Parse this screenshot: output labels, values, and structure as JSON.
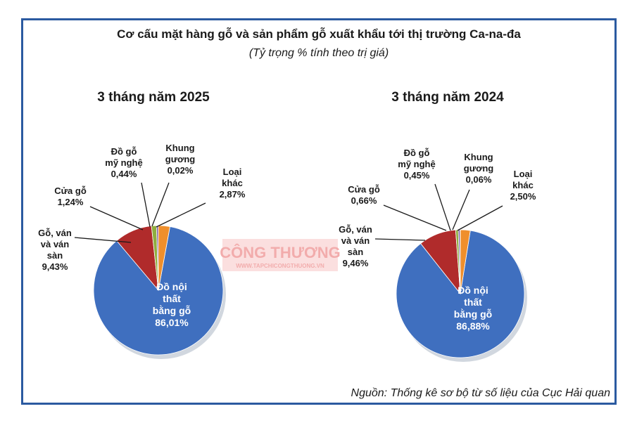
{
  "header": {
    "title": "Cơ cấu mặt hàng gỗ và sản phẩm gỗ xuất khẩu tới thị trường Ca-na-đa",
    "subtitle": "(Tỷ trọng % tính theo trị giá)"
  },
  "source": "Nguồn: Thống kê sơ bộ từ số liệu của Cục Hải quan",
  "watermark": {
    "main": "CÔNG THƯƠNG",
    "sub": "WWW.TAPCHICONGTHUONG.VN"
  },
  "colors": {
    "frame": "#2b5aa0",
    "do_noi_that": "#3f6fbf",
    "go_van": "#b02b2b",
    "cua_go": "#8fae3e",
    "do_go_my_nghe": "#7c5aa0",
    "khung_guong": "#3fa6c4",
    "loai_khac": "#ef8f2c"
  },
  "chart_data": [
    {
      "type": "pie",
      "title": "3 tháng năm 2025",
      "slices": [
        {
          "key": "do_noi_that",
          "label_lines": [
            "Đồ nội",
            "thất",
            "bằng gỗ",
            "86,01%"
          ],
          "value": 86.01
        },
        {
          "key": "go_van",
          "label_lines": [
            "Gỗ, ván",
            "và ván",
            "sàn",
            "9,43%"
          ],
          "value": 9.43
        },
        {
          "key": "cua_go",
          "label_lines": [
            "Cửa gỗ",
            "1,24%"
          ],
          "value": 1.24
        },
        {
          "key": "do_go_my_nghe",
          "label_lines": [
            "Đồ gỗ",
            "mỹ nghệ",
            "0,44%"
          ],
          "value": 0.44
        },
        {
          "key": "khung_guong",
          "label_lines": [
            "Khung",
            "gương",
            "0,02%"
          ],
          "value": 0.02
        },
        {
          "key": "loai_khac",
          "label_lines": [
            "Loại",
            "khác",
            "2,87%"
          ],
          "value": 2.87
        }
      ]
    },
    {
      "type": "pie",
      "title": "3 tháng năm 2024",
      "slices": [
        {
          "key": "do_noi_that",
          "label_lines": [
            "Đồ nội",
            "thất",
            "bằng gỗ",
            "86,88%"
          ],
          "value": 86.88
        },
        {
          "key": "go_van",
          "label_lines": [
            "Gỗ, ván",
            "và ván",
            "sàn",
            "9,46%"
          ],
          "value": 9.46
        },
        {
          "key": "cua_go",
          "label_lines": [
            "Cửa gỗ",
            "0,66%"
          ],
          "value": 0.66
        },
        {
          "key": "do_go_my_nghe",
          "label_lines": [
            "Đồ gỗ",
            "mỹ nghệ",
            "0,45%"
          ],
          "value": 0.45
        },
        {
          "key": "khung_guong",
          "label_lines": [
            "Khung",
            "gương",
            "0,06%"
          ],
          "value": 0.06
        },
        {
          "key": "loai_khac",
          "label_lines": [
            "Loại",
            "khác",
            "2,50%"
          ],
          "value": 2.5
        }
      ]
    }
  ]
}
